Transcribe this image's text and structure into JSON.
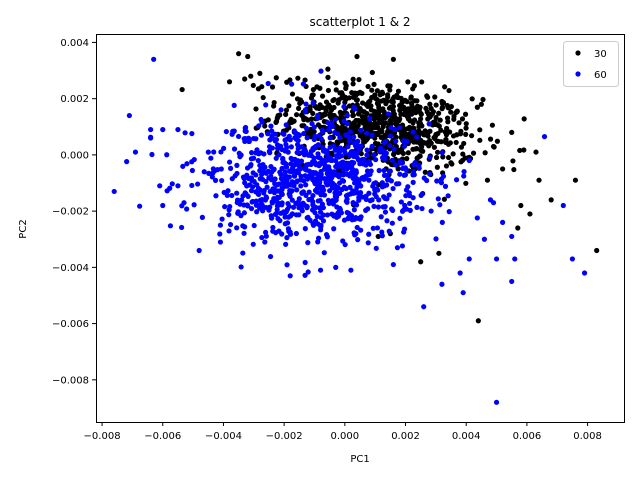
{
  "chart_data": {
    "type": "scatter",
    "title": "scatterplot 1 & 2",
    "xlabel": "PC1",
    "ylabel": "PC2",
    "xlim": [
      -0.0082,
      0.0092
    ],
    "ylim": [
      -0.0095,
      0.0043
    ],
    "xticks": [
      -0.008,
      -0.006,
      -0.004,
      -0.002,
      0.0,
      0.002,
      0.004,
      0.006,
      0.008
    ],
    "xtick_labels": [
      "−0.008",
      "−0.006",
      "−0.004",
      "−0.002",
      "0.000",
      "0.002",
      "0.004",
      "0.006",
      "0.008"
    ],
    "yticks": [
      0.004,
      0.002,
      0.0,
      -0.002,
      -0.004,
      -0.006,
      -0.008
    ],
    "ytick_labels": [
      "0.004",
      "0.002",
      "0.000",
      "−0.002",
      "−0.004",
      "−0.006",
      "−0.008"
    ],
    "grid": false,
    "legend_position": "top-right",
    "series": [
      {
        "name": "30",
        "color": "#000000",
        "cluster": {
          "n": 780,
          "center": [
            0.0011,
            0.001
          ],
          "spread": [
            0.0016,
            0.00075
          ],
          "tilt": -0.25
        },
        "points": [
          [
            -0.0035,
            0.0036
          ],
          [
            -0.0032,
            0.0035
          ],
          [
            -0.0038,
            0.0026
          ],
          [
            -0.0033,
            0.0027
          ],
          [
            -0.0031,
            0.0028
          ],
          [
            -0.0028,
            0.0029
          ],
          [
            0.0004,
            0.0035
          ],
          [
            0.0016,
            0.0034
          ],
          [
            0.0027,
            0.0021
          ],
          [
            0.0032,
            0.0019
          ],
          [
            0.0045,
            0.0018
          ],
          [
            0.0055,
            0.0008
          ],
          [
            0.0063,
            0.0001
          ],
          [
            0.0064,
            -0.0009
          ],
          [
            0.0068,
            -0.0016
          ],
          [
            0.0076,
            -0.0009
          ],
          [
            0.0083,
            -0.0034
          ],
          [
            0.0058,
            -0.0018
          ],
          [
            0.0061,
            -0.0021
          ],
          [
            0.0057,
            -0.0026
          ],
          [
            0.0044,
            -0.0059
          ],
          [
            0.0025,
            -0.0038
          ],
          [
            0.0031,
            -0.0035
          ],
          [
            0.0015,
            -0.0028
          ],
          [
            0.0011,
            -0.0029
          ],
          [
            0.0049,
            0.0003
          ],
          [
            0.0052,
            -0.0005
          ],
          [
            0.0047,
            -0.0009
          ]
        ]
      },
      {
        "name": "60",
        "color": "#0000ff",
        "cluster": {
          "n": 900,
          "center": [
            -0.0011,
            -0.0009
          ],
          "spread": [
            0.0019,
            0.0011
          ],
          "tilt": 0.0
        },
        "points": [
          [
            -0.0063,
            0.0034
          ],
          [
            -0.0071,
            0.0014
          ],
          [
            -0.0069,
            0.0001
          ],
          [
            -0.0076,
            -0.0013
          ],
          [
            -0.0064,
            0.0009
          ],
          [
            -0.0064,
            0.0006
          ],
          [
            -0.006,
            0.0009
          ],
          [
            -0.0055,
            0.0009
          ],
          [
            -0.0061,
            -0.0011
          ],
          [
            -0.006,
            -0.0018
          ],
          [
            -0.0055,
            -0.0011
          ],
          [
            -0.0053,
            -0.0017
          ],
          [
            -0.0048,
            -0.0034
          ],
          [
            -0.0041,
            -0.0031
          ],
          [
            -0.0041,
            -0.0025
          ],
          [
            -0.0034,
            -0.0016
          ],
          [
            -0.0018,
            -0.0043
          ],
          [
            -0.0008,
            -0.0041
          ],
          [
            -0.0003,
            -0.004
          ],
          [
            0.0002,
            -0.0041
          ],
          [
            0.0016,
            -0.0039
          ],
          [
            0.0026,
            -0.0054
          ],
          [
            0.0032,
            -0.0046
          ],
          [
            0.0039,
            -0.0049
          ],
          [
            0.0038,
            -0.0042
          ],
          [
            0.0041,
            -0.0037
          ],
          [
            0.0046,
            -0.003
          ],
          [
            0.0048,
            -0.0016
          ],
          [
            0.0052,
            -0.0024
          ],
          [
            0.0055,
            -0.0029
          ],
          [
            0.0056,
            -0.0037
          ],
          [
            0.0055,
            -0.0045
          ],
          [
            0.005,
            -0.0037
          ],
          [
            0.0075,
            -0.0037
          ],
          [
            0.0079,
            -0.0042
          ],
          [
            0.0072,
            -0.0018
          ],
          [
            0.0049,
            -0.0017
          ],
          [
            0.005,
            -0.0088
          ],
          [
            0.0003,
            0.0017
          ],
          [
            -0.0009,
            0.0013
          ],
          [
            -0.0013,
            0.0016
          ],
          [
            -0.0021,
            0.0016
          ],
          [
            0.0009,
            -0.0016
          ],
          [
            0.0012,
            -0.0022
          ]
        ]
      }
    ]
  }
}
